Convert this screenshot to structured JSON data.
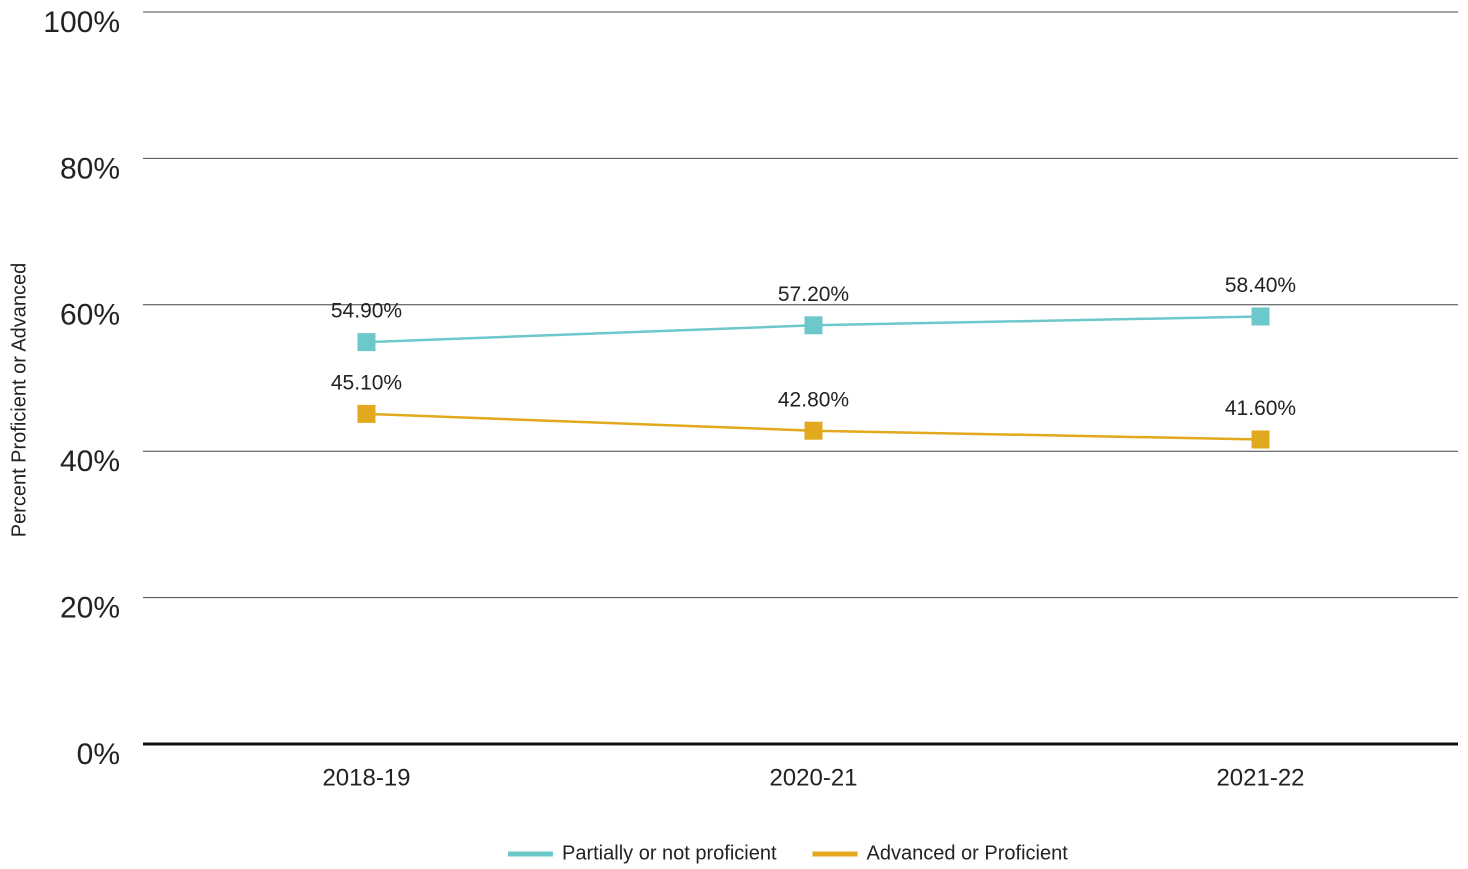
{
  "chart_data": {
    "type": "line",
    "y_axis_label": "Percent Proficient or Advanced",
    "categories": [
      "2018-19",
      "2020-21",
      "2021-22"
    ],
    "series": [
      {
        "name": "Partially or not proficient",
        "color": "#6cc8cb",
        "values": [
          54.9,
          57.2,
          58.4
        ],
        "value_labels": [
          "54.90%",
          "57.20%",
          "58.40%"
        ]
      },
      {
        "name": "Advanced or Proficient",
        "color": "#e2a81e",
        "values": [
          45.1,
          42.8,
          41.6
        ],
        "value_labels": [
          "45.10%",
          "42.80%",
          "41.60%"
        ]
      }
    ],
    "ylim": [
      0,
      100
    ],
    "yticks": [
      {
        "value": 0,
        "label": "0%"
      },
      {
        "value": 20,
        "label": "20%"
      },
      {
        "value": 40,
        "label": "40%"
      },
      {
        "value": 60,
        "label": "60%"
      },
      {
        "value": 80,
        "label": "80%"
      },
      {
        "value": 100,
        "label": "100%"
      }
    ],
    "grid": true,
    "legend": "bottom"
  }
}
